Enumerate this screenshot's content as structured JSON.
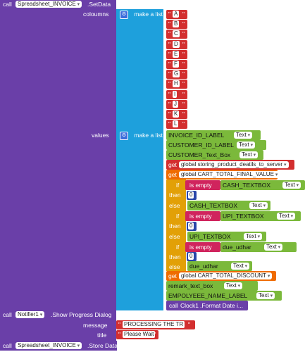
{
  "setdata": {
    "call": "call",
    "component": "Spreadsheet_INVOICE",
    "method": ".SetData",
    "coloumns_label": "coloumns",
    "values_label": "values",
    "make_list": "make a list",
    "columns": [
      "A",
      "B",
      "C",
      "D",
      "E",
      "F",
      "G",
      "H",
      "I",
      "J",
      "K",
      "L"
    ]
  },
  "values": {
    "invoice_id": "INVOICE_ID_LABEL",
    "customer_id": "CUSTOMER_ID_LABEL",
    "customer_text": "CUSTOMER_Text_Box",
    "text": "Text",
    "get": "get",
    "global_storing": "global storing_product_deatils_to_server",
    "global_cart_total": "global CART_TOTAL_FINAL_VALUE",
    "if": "if",
    "then": "then",
    "else": "else",
    "is_empty": "is empty",
    "cash_textbox": "CASH_TEXTBOX",
    "upi_textbox": "UPI_TEXTBOX",
    "due_udhar": "due_udhar",
    "zero": "0",
    "global_cart_discount": "global CART_TOTAL_DISCOUNT",
    "remark": "remark_text_box",
    "employee": "EMPOLYEEE_NAME_LABEL",
    "clock_call": "call",
    "clock": "Clock1",
    "format_date": ".Format Date i..."
  },
  "progress": {
    "call": "call",
    "component": "Notifier1",
    "method": ".Show Progress Dialog",
    "message_label": "message",
    "message_value": "PROCESSING THE TR",
    "title_label": "title",
    "title_value": "Please Wait"
  },
  "storedata": {
    "call": "call",
    "component": "Spreadsheet_INVOICE",
    "method": ".Store Data"
  }
}
